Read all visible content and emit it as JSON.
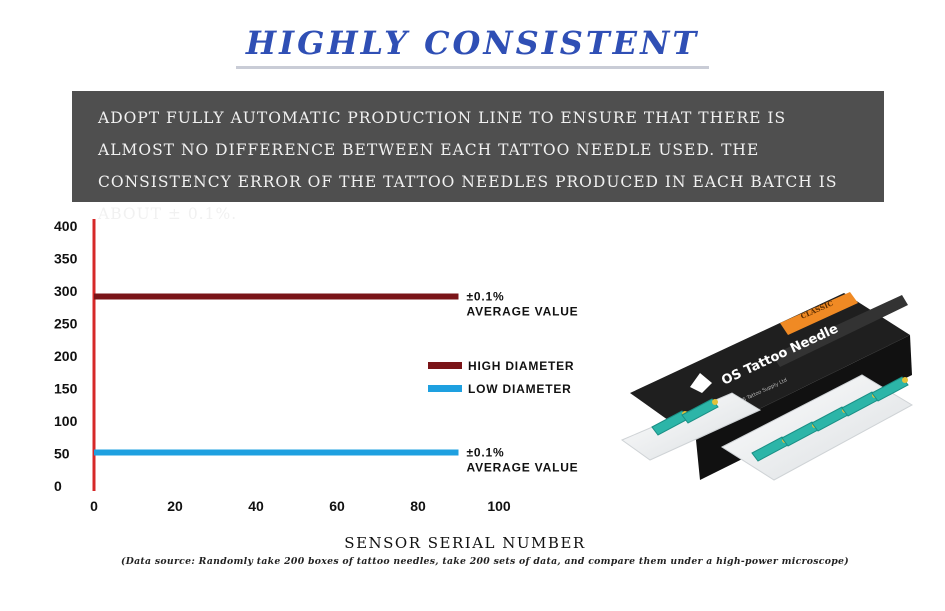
{
  "title": "HIGHLY CONSISTENT",
  "description": "ADOPT FULLY AUTOMATIC PRODUCTION LINE TO ENSURE THAT THERE IS ALMOST NO DIFFERENCE BETWEEN EACH TATTOO NEEDLE USED. THE CONSISTENCY ERROR OF THE TATTOO NEEDLES PRODUCED IN EACH BATCH IS ABOUT ± 0.1%.",
  "chart_data": {
    "type": "line",
    "title": "",
    "xlabel": "SENSOR SERIAL NUMBER",
    "ylabel": "",
    "xlim": [
      0,
      100
    ],
    "ylim": [
      0,
      400
    ],
    "x_ticks": [
      "0",
      "20",
      "40",
      "60",
      "80",
      "100"
    ],
    "y_ticks": [
      "0",
      "50",
      "100",
      "150",
      "200",
      "250",
      "300",
      "350",
      "400"
    ],
    "grid": false,
    "legend_position": "right",
    "series": [
      {
        "name": "HIGH DIAMETER",
        "color": "#7a1418",
        "x": [
          0,
          90
        ],
        "y": [
          290,
          290
        ],
        "annotation": [
          "±0.1%",
          "AVERAGE VALUE"
        ]
      },
      {
        "name": "LOW DIAMETER",
        "color": "#1ea0e0",
        "x": [
          0,
          90
        ],
        "y": [
          50,
          50
        ],
        "annotation": [
          "±0.1%",
          "AVERAGE VALUE"
        ]
      }
    ],
    "y_axis_color": "#d62828"
  },
  "source_note": "(Data source: Randomly take 200 boxes of tattoo needles, take 200 sets of data, and compare them under a high-power microscope)",
  "product": {
    "brand": "OS Tattoo Needle",
    "label": "CLASSIC",
    "sublabel": "OS Tattoo Supply Ltd",
    "accent": "#f08a24",
    "box_color": "#262626",
    "cartridge_color": "#2cb5a8"
  }
}
